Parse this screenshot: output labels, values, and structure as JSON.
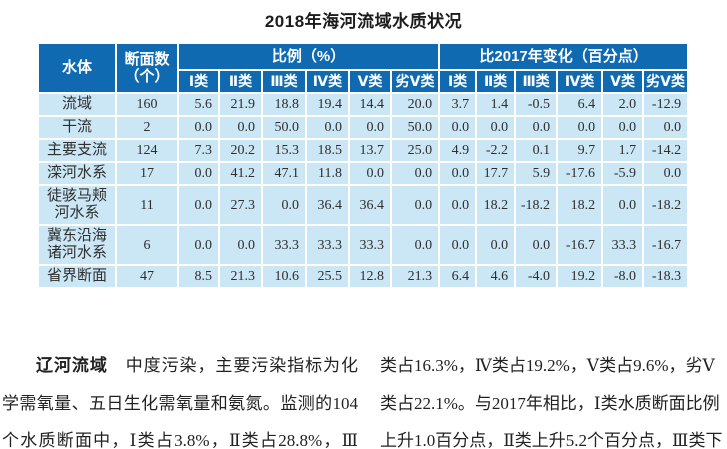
{
  "title": "2018年海河流域水质状况",
  "colors": {
    "header_bg": "#0f6ab2",
    "row_bg": "#cbe7f6"
  },
  "table": {
    "header": {
      "water_body": "水体",
      "section_count_line1": "断面数",
      "section_count_line2": "（个）",
      "proportion": "比例（%）",
      "change": "比2017年变化（百分点）",
      "classes": [
        "Ⅰ类",
        "Ⅱ类",
        "Ⅲ类",
        "Ⅳ类",
        "Ⅴ类",
        "劣Ⅴ类"
      ]
    },
    "rows": [
      {
        "name": "流域",
        "sections": "160",
        "proportions": [
          "5.6",
          "21.9",
          "18.8",
          "19.4",
          "14.4",
          "20.0"
        ],
        "changes": [
          "3.7",
          "1.4",
          "-0.5",
          "6.4",
          "2.0",
          "-12.9"
        ]
      },
      {
        "name": "干流",
        "sections": "2",
        "proportions": [
          "0.0",
          "0.0",
          "50.0",
          "0.0",
          "0.0",
          "50.0"
        ],
        "changes": [
          "0.0",
          "0.0",
          "0.0",
          "0.0",
          "0.0",
          "0.0"
        ]
      },
      {
        "name": "主要支流",
        "sections": "124",
        "proportions": [
          "7.3",
          "20.2",
          "15.3",
          "18.5",
          "13.7",
          "25.0"
        ],
        "changes": [
          "4.9",
          "-2.2",
          "0.1",
          "9.7",
          "1.7",
          "-14.2"
        ]
      },
      {
        "name": "滦河水系",
        "sections": "17",
        "proportions": [
          "0.0",
          "41.2",
          "47.1",
          "11.8",
          "0.0",
          "0.0"
        ],
        "changes": [
          "0.0",
          "17.7",
          "5.9",
          "-17.6",
          "-5.9",
          "0.0"
        ]
      },
      {
        "name": "徒骇马颊河水系",
        "sections": "11",
        "proportions": [
          "0.0",
          "27.3",
          "0.0",
          "36.4",
          "36.4",
          "0.0"
        ],
        "changes": [
          "0.0",
          "18.2",
          "-18.2",
          "18.2",
          "0.0",
          "-18.2"
        ]
      },
      {
        "name": "冀东沿海诸河水系",
        "sections": "6",
        "proportions": [
          "0.0",
          "0.0",
          "33.3",
          "33.3",
          "33.3",
          "0.0"
        ],
        "changes": [
          "0.0",
          "0.0",
          "0.0",
          "-16.7",
          "33.3",
          "-16.7"
        ]
      },
      {
        "name": "省界断面",
        "sections": "47",
        "proportions": [
          "8.5",
          "21.3",
          "10.6",
          "25.5",
          "12.8",
          "21.3"
        ],
        "changes": [
          "6.4",
          "4.6",
          "-4.0",
          "19.2",
          "-8.0",
          "-18.3"
        ]
      }
    ]
  },
  "body_text": {
    "left": {
      "lead": "辽河流域",
      "line1_rest": "　中度污染，主要污染指标为化",
      "line2": "学需氧量、五日生化需氧量和氨氮。监测的104",
      "line3": "个水质断面中，Ⅰ类占3.8%，Ⅱ类占28.8%，Ⅲ"
    },
    "right": {
      "line1": "类占16.3%，Ⅳ类占19.2%，Ⅴ类占9.6%，劣Ⅴ",
      "line2": "类占22.1%。与2017年相比，Ⅰ类水质断面比例",
      "line3": "上升1.0百分点，Ⅱ类上升5.2个百分点，Ⅲ类下"
    }
  }
}
